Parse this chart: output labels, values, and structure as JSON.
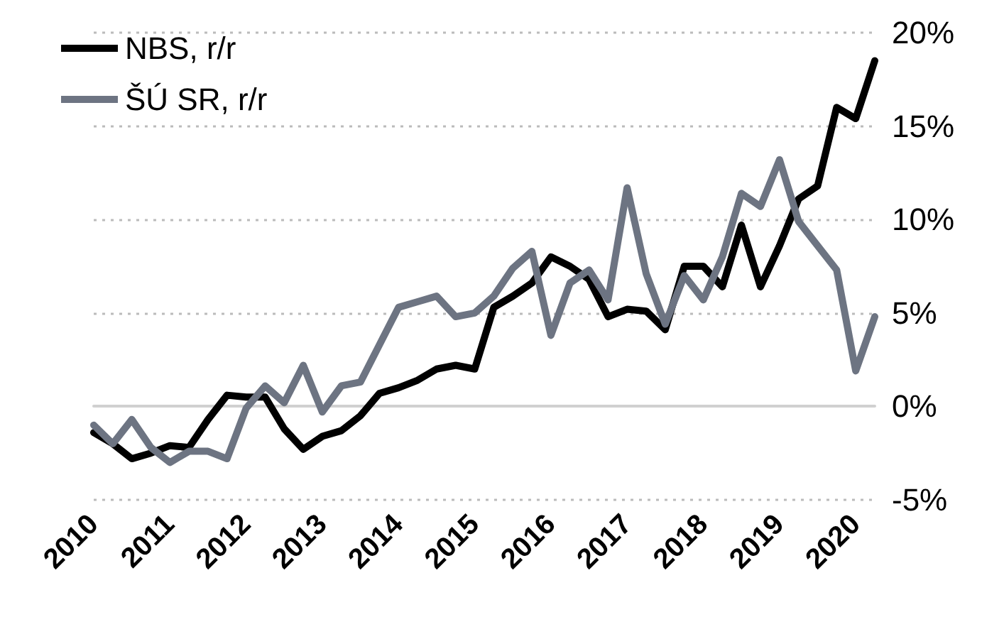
{
  "chart_data": {
    "type": "line",
    "categories": [
      "2010",
      null,
      null,
      null,
      "2011",
      null,
      null,
      null,
      "2012",
      null,
      null,
      null,
      "2013",
      null,
      null,
      null,
      "2014",
      null,
      null,
      null,
      "2015",
      null,
      null,
      null,
      "2016",
      null,
      null,
      null,
      "2017",
      null,
      null,
      null,
      "2018",
      null,
      null,
      null,
      "2019",
      null,
      null,
      null,
      "2020",
      null
    ],
    "series": [
      {
        "name": "NBS, r/r",
        "color": "#000000",
        "values": [
          -1.4,
          -2.0,
          -2.8,
          -2.5,
          -2.1,
          -2.2,
          -0.7,
          0.6,
          0.5,
          0.5,
          -1.2,
          -2.3,
          -1.6,
          -1.3,
          -0.5,
          0.7,
          1.0,
          1.4,
          2.0,
          2.2,
          2.0,
          5.3,
          5.9,
          6.6,
          8.0,
          7.5,
          6.8,
          4.8,
          5.2,
          5.1,
          4.1,
          7.5,
          7.5,
          6.4,
          9.7,
          6.4,
          8.6,
          11.1,
          11.8,
          16.0,
          15.4,
          18.5
        ]
      },
      {
        "name": "ŠÚ SR, r/r",
        "color": "#6d7482",
        "values": [
          -1.0,
          -2.0,
          -0.7,
          -2.2,
          -3.0,
          -2.4,
          -2.4,
          -2.8,
          -0.1,
          1.1,
          0.2,
          2.2,
          -0.3,
          1.1,
          1.3,
          3.3,
          5.3,
          5.6,
          5.9,
          4.8,
          5.0,
          5.9,
          7.4,
          8.3,
          3.8,
          6.6,
          7.3,
          5.7,
          11.7,
          7.1,
          4.4,
          7.0,
          5.7,
          8.0,
          11.4,
          10.7,
          13.2,
          9.9,
          8.6,
          7.3,
          1.9,
          4.8
        ]
      }
    ],
    "ylim": [
      -5,
      20
    ],
    "yticks": [
      {
        "value": -5,
        "label": "-5%"
      },
      {
        "value": 0,
        "label": "0%"
      },
      {
        "value": 5,
        "label": "5%"
      },
      {
        "value": 10,
        "label": "10%"
      },
      {
        "value": 15,
        "label": "15%"
      },
      {
        "value": 20,
        "label": "20%"
      }
    ],
    "grid": "y",
    "legend": "top left",
    "marker": "none",
    "line_style": "solid"
  }
}
